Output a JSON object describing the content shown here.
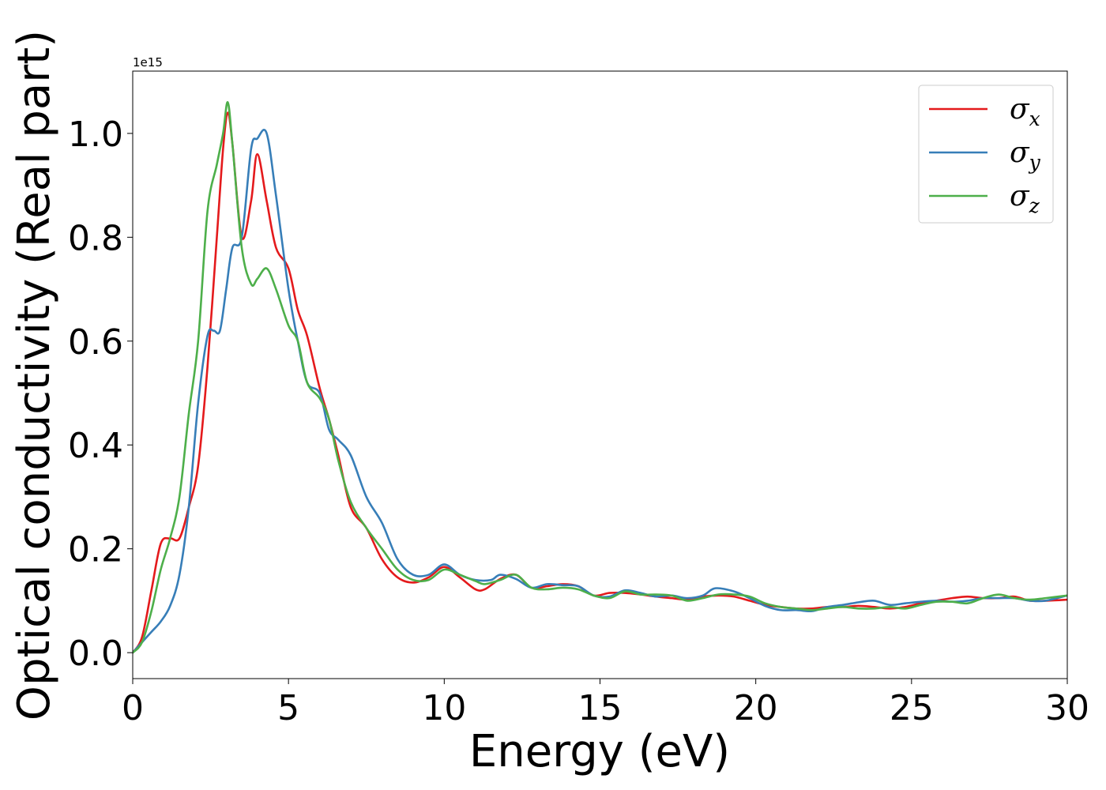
{
  "chart_data": {
    "type": "line",
    "title": "",
    "xlabel": "Energy (eV)",
    "ylabel": "Optical conductivity (Real part)",
    "y_offset_text": "1e15",
    "xlim": [
      0,
      30
    ],
    "ylim": [
      -0.05,
      1.12
    ],
    "x_ticks": [
      0,
      5,
      10,
      15,
      20,
      25,
      30
    ],
    "x_tick_labels": [
      "0",
      "5",
      "10",
      "15",
      "20",
      "25",
      "30"
    ],
    "y_ticks": [
      0.0,
      0.2,
      0.4,
      0.6,
      0.8,
      1.0
    ],
    "y_tick_labels": [
      "0.0",
      "0.2",
      "0.4",
      "0.6",
      "0.8",
      "1.0"
    ],
    "grid": false,
    "legend_position": "top-right",
    "series": [
      {
        "name": "σx",
        "name_base": "σ",
        "name_sub": "x",
        "color": "#e41a1c",
        "x": [
          0,
          0.3,
          0.6,
          0.9,
          1.2,
          1.5,
          1.8,
          2.1,
          2.4,
          2.7,
          2.9,
          3.05,
          3.2,
          3.5,
          3.8,
          4.0,
          4.3,
          4.6,
          5.0,
          5.3,
          5.6,
          6.0,
          6.3,
          6.6,
          7.0,
          7.5,
          8.0,
          8.5,
          9.0,
          9.5,
          10.0,
          10.5,
          11.0,
          11.3,
          11.8,
          12.3,
          12.8,
          13.3,
          13.8,
          14.3,
          14.8,
          15.3,
          15.8,
          16.3,
          16.8,
          17.3,
          17.8,
          18.3,
          18.8,
          19.3,
          19.8,
          20.3,
          20.8,
          21.3,
          21.8,
          22.3,
          22.8,
          23.3,
          23.8,
          24.3,
          24.8,
          25.3,
          25.8,
          26.3,
          26.8,
          27.3,
          27.8,
          28.3,
          28.8,
          29.3,
          30.0
        ],
        "y": [
          0.0,
          0.03,
          0.12,
          0.21,
          0.22,
          0.22,
          0.28,
          0.36,
          0.55,
          0.8,
          0.97,
          1.04,
          0.98,
          0.8,
          0.87,
          0.96,
          0.87,
          0.78,
          0.74,
          0.66,
          0.61,
          0.51,
          0.45,
          0.38,
          0.28,
          0.24,
          0.18,
          0.145,
          0.135,
          0.145,
          0.165,
          0.145,
          0.122,
          0.122,
          0.142,
          0.15,
          0.125,
          0.128,
          0.132,
          0.128,
          0.11,
          0.115,
          0.115,
          0.112,
          0.108,
          0.105,
          0.102,
          0.108,
          0.11,
          0.108,
          0.1,
          0.092,
          0.088,
          0.085,
          0.085,
          0.088,
          0.088,
          0.09,
          0.088,
          0.085,
          0.088,
          0.095,
          0.1,
          0.105,
          0.108,
          0.105,
          0.105,
          0.108,
          0.1,
          0.1,
          0.102
        ]
      },
      {
        "name": "σy",
        "name_base": "σ",
        "name_sub": "y",
        "color": "#377eb8",
        "x": [
          0,
          0.3,
          0.6,
          0.9,
          1.2,
          1.5,
          1.8,
          2.1,
          2.4,
          2.6,
          2.8,
          3.0,
          3.2,
          3.5,
          3.8,
          4.0,
          4.3,
          4.6,
          5.0,
          5.3,
          5.6,
          6.0,
          6.3,
          6.6,
          7.0,
          7.5,
          8.0,
          8.5,
          9.0,
          9.5,
          10.0,
          10.5,
          11.0,
          11.5,
          11.8,
          12.3,
          12.8,
          13.3,
          13.8,
          14.3,
          14.8,
          15.3,
          15.8,
          16.3,
          16.8,
          17.3,
          17.8,
          18.3,
          18.7,
          19.3,
          19.8,
          20.3,
          20.8,
          21.3,
          21.8,
          22.3,
          22.8,
          23.3,
          23.8,
          24.3,
          24.8,
          25.3,
          25.8,
          26.3,
          26.8,
          27.3,
          27.8,
          28.3,
          28.8,
          29.3,
          30.0
        ],
        "y": [
          0.0,
          0.02,
          0.04,
          0.06,
          0.09,
          0.15,
          0.28,
          0.48,
          0.61,
          0.62,
          0.62,
          0.7,
          0.78,
          0.8,
          0.97,
          0.99,
          1.0,
          0.88,
          0.7,
          0.6,
          0.52,
          0.5,
          0.43,
          0.41,
          0.38,
          0.3,
          0.25,
          0.18,
          0.15,
          0.15,
          0.17,
          0.15,
          0.14,
          0.14,
          0.15,
          0.142,
          0.125,
          0.132,
          0.13,
          0.128,
          0.11,
          0.108,
          0.12,
          0.115,
          0.108,
          0.11,
          0.105,
          0.11,
          0.124,
          0.118,
          0.105,
          0.09,
          0.082,
          0.082,
          0.08,
          0.088,
          0.092,
          0.097,
          0.1,
          0.092,
          0.095,
          0.098,
          0.1,
          0.098,
          0.1,
          0.105,
          0.105,
          0.105,
          0.1,
          0.1,
          0.11
        ]
      },
      {
        "name": "σz",
        "name_base": "σ",
        "name_sub": "z",
        "color": "#4daf4a",
        "x": [
          0,
          0.3,
          0.6,
          0.9,
          1.2,
          1.5,
          1.8,
          2.1,
          2.4,
          2.7,
          2.9,
          3.05,
          3.2,
          3.5,
          3.8,
          4.0,
          4.3,
          4.6,
          5.0,
          5.3,
          5.6,
          6.0,
          6.3,
          6.6,
          7.0,
          7.5,
          8.0,
          8.5,
          9.0,
          9.5,
          10.0,
          10.5,
          11.0,
          11.3,
          11.8,
          12.3,
          12.8,
          13.3,
          13.8,
          14.3,
          14.8,
          15.3,
          15.8,
          16.3,
          16.8,
          17.3,
          17.8,
          18.3,
          18.8,
          19.3,
          19.8,
          20.3,
          20.8,
          21.3,
          21.8,
          22.3,
          22.8,
          23.3,
          23.8,
          24.3,
          24.8,
          25.3,
          25.8,
          26.3,
          26.8,
          27.3,
          27.8,
          28.3,
          28.8,
          29.3,
          30.0
        ],
        "y": [
          0.0,
          0.02,
          0.08,
          0.16,
          0.22,
          0.3,
          0.46,
          0.6,
          0.85,
          0.94,
          1.0,
          1.06,
          0.98,
          0.78,
          0.71,
          0.72,
          0.74,
          0.7,
          0.63,
          0.6,
          0.52,
          0.49,
          0.45,
          0.37,
          0.29,
          0.24,
          0.2,
          0.16,
          0.14,
          0.14,
          0.16,
          0.15,
          0.138,
          0.132,
          0.14,
          0.15,
          0.125,
          0.122,
          0.125,
          0.122,
          0.11,
          0.105,
          0.118,
          0.112,
          0.112,
          0.11,
          0.1,
          0.105,
          0.112,
          0.112,
          0.108,
          0.095,
          0.088,
          0.085,
          0.082,
          0.085,
          0.088,
          0.085,
          0.085,
          0.088,
          0.085,
          0.092,
          0.098,
          0.098,
          0.095,
          0.105,
          0.112,
          0.105,
          0.102,
          0.105,
          0.11
        ]
      }
    ]
  }
}
